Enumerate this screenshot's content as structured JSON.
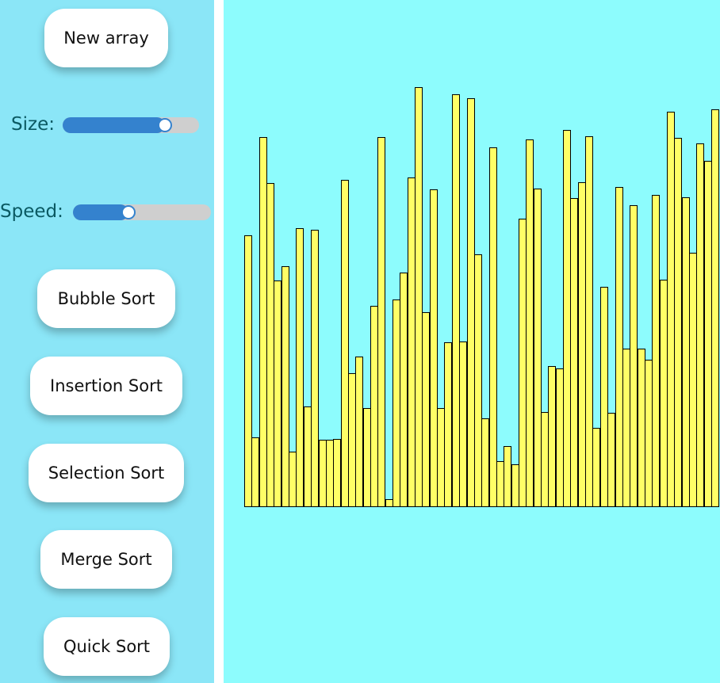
{
  "sidebar": {
    "new_array_label": "New array",
    "size": {
      "label": "Size:",
      "value": 0.75
    },
    "speed": {
      "label": "Speed:",
      "value": 0.4
    },
    "buttons": {
      "bubble": "Bubble Sort",
      "insertion": "Insertion Sort",
      "selection": "Selection Sort",
      "merge": "Merge Sort",
      "quick": "Quick Sort"
    }
  },
  "colors": {
    "sidebar_bg": "#8be6f7",
    "canvas_bg": "#8dfcfd",
    "bar_fill": "#ffff66",
    "slider_accent": "#3482ce"
  },
  "array_values": [
    343,
    88,
    467,
    409,
    286,
    304,
    70,
    352,
    127,
    350,
    85,
    85,
    86,
    413,
    169,
    190,
    125,
    254,
    467,
    10,
    262,
    296,
    416,
    530,
    246,
    401,
    125,
    208,
    521,
    209,
    516,
    319,
    112,
    454,
    58,
    77,
    54,
    364,
    464,
    402,
    120,
    178,
    175,
    476,
    390,
    410,
    468,
    100,
    278,
    119,
    404,
    200,
    381,
    200,
    186,
    394,
    287,
    499,
    466,
    391,
    321,
    459,
    437,
    502
  ]
}
